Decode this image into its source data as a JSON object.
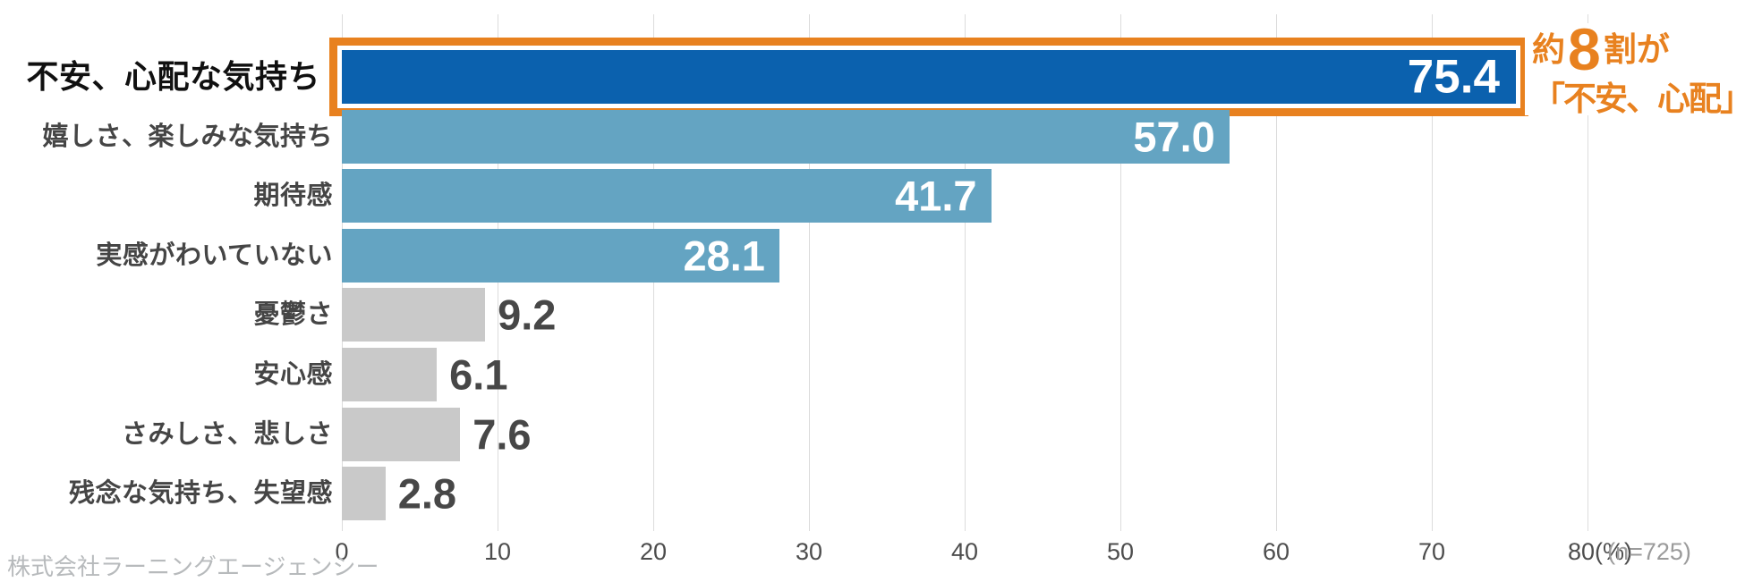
{
  "chart_data": {
    "type": "bar",
    "orientation": "horizontal",
    "categories": [
      "不安、心配な気持ち",
      "嬉しさ、楽しみな気持ち",
      "期待感",
      "実感がわいていない",
      "憂鬱さ",
      "安心感",
      "さみしさ、悲しさ",
      "残念な気持ち、失望感"
    ],
    "values": [
      75.4,
      57.0,
      41.7,
      28.1,
      9.2,
      6.1,
      7.6,
      2.8
    ],
    "value_labels": [
      "75.4",
      "57.0",
      "41.7",
      "28.1",
      "9.2",
      "6.1",
      "7.6",
      "2.8"
    ],
    "xlim": [
      0,
      80
    ],
    "x_ticks": [
      "0",
      "10",
      "20",
      "30",
      "40",
      "50",
      "60",
      "70",
      "80(%)"
    ],
    "xlabel": "(%)",
    "ylabel": "",
    "grid": "vertical-on",
    "legend": "none",
    "highlight_index": 0,
    "sample_size": "(n=725)",
    "source": "株式会社ラーニングエージェンシー",
    "annotation": "約8割が「不安、心配」"
  },
  "rows": [
    {
      "label": "不安、心配な気持ち",
      "value": "75.4",
      "type": "highlight"
    },
    {
      "label": "嬉しさ、楽しみな気持ち",
      "value": "57.0",
      "type": "blue"
    },
    {
      "label": "期待感",
      "value": "41.7",
      "type": "blue"
    },
    {
      "label": "実感がわいていない",
      "value": "28.1",
      "type": "blue"
    },
    {
      "label": "憂鬱さ",
      "value": "9.2",
      "type": "gray"
    },
    {
      "label": "安心感",
      "value": "6.1",
      "type": "gray"
    },
    {
      "label": "さみしさ、悲しさ",
      "value": "7.6",
      "type": "gray"
    },
    {
      "label": "残念な気持ち、失望感",
      "value": "2.8",
      "type": "gray"
    }
  ],
  "annotation": {
    "line1_prefix": "約",
    "line1_big": "8",
    "line1_suffix": "割が",
    "line2": "「不安、心配」"
  },
  "axis": {
    "ticks": [
      "0",
      "10",
      "20",
      "30",
      "40",
      "50",
      "60",
      "70",
      "80(%)"
    ],
    "sample_size": "(n=725)"
  },
  "footer": {
    "source": "株式会社ラーニングエージェンシー"
  },
  "colors": {
    "highlight_bar": "#0b61ae",
    "blue_bar": "#64a4c2",
    "gray_bar": "#c9c9c9",
    "accent_orange": "#e8811f",
    "value_on_bar": "#ffffff",
    "value_outside": "#474747",
    "gridline": "#dcdcdc"
  }
}
